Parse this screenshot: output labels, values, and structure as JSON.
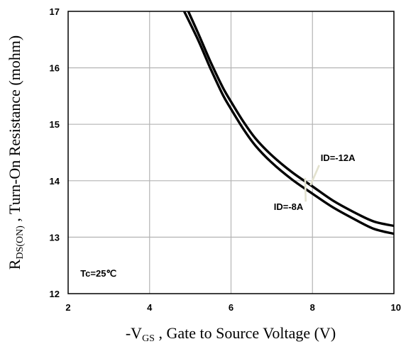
{
  "chart_data": {
    "type": "line",
    "xlabel": {
      "prefix": "-V",
      "sub": "GS",
      "rest": " , Gate to Source Voltage (V)"
    },
    "ylabel": {
      "prefix": "R",
      "sub": "DS(ON)",
      "rest": " , Turn-On Resistance (mohm)"
    },
    "xlim": [
      2,
      10
    ],
    "ylim": [
      12,
      17
    ],
    "xticks": [
      2,
      4,
      6,
      8,
      10
    ],
    "yticks": [
      12,
      13,
      14,
      15,
      16,
      17
    ],
    "grid": true,
    "series": [
      {
        "name": "ID=-12A",
        "x": [
          4.95,
          5.2,
          5.5,
          5.8,
          6.0,
          6.3,
          6.6,
          7.0,
          7.5,
          8.0,
          8.5,
          9.0,
          9.5,
          10.0
        ],
        "y": [
          17.0,
          16.6,
          16.1,
          15.65,
          15.4,
          15.05,
          14.75,
          14.45,
          14.15,
          13.9,
          13.65,
          13.45,
          13.28,
          13.2
        ]
      },
      {
        "name": "ID=-8A",
        "x": [
          4.85,
          5.2,
          5.5,
          5.8,
          6.0,
          6.3,
          6.6,
          7.0,
          7.5,
          8.0,
          8.5,
          9.0,
          9.5,
          10.0
        ],
        "y": [
          17.0,
          16.48,
          15.98,
          15.52,
          15.27,
          14.92,
          14.62,
          14.32,
          14.02,
          13.77,
          13.53,
          13.33,
          13.15,
          13.06
        ]
      }
    ],
    "annotations": [
      {
        "text": "ID=-12A",
        "label_x": 8.2,
        "label_y": 14.35,
        "point_x": 7.95,
        "point_y": 13.92
      },
      {
        "text": "ID=-8A",
        "label_x": 7.05,
        "label_y": 13.48,
        "point_x": 7.82,
        "point_y": 14.05
      },
      {
        "text": "Tc=25℃",
        "label_x": 2.3,
        "label_y": 12.3
      }
    ]
  }
}
